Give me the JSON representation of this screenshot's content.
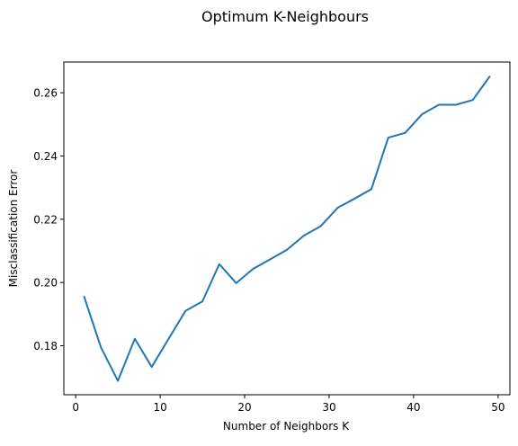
{
  "chart_data": {
    "type": "line",
    "title": "Optimum K-Neighbours",
    "xlabel": "Number of Neighbors K",
    "ylabel": "Misclassification Error",
    "xlim": [
      -1.4,
      51.4
    ],
    "ylim": [
      0.1645,
      0.2697
    ],
    "xticks": [
      0,
      10,
      20,
      30,
      40,
      50
    ],
    "yticks": [
      0.18,
      0.2,
      0.22,
      0.24,
      0.26
    ],
    "ytick_labels": [
      "0.18",
      "0.20",
      "0.22",
      "0.24",
      "0.26"
    ],
    "grid": false,
    "line_color": "#1f77b4",
    "series": [
      {
        "x": [
          1,
          3,
          5,
          7,
          9,
          11,
          13,
          15,
          17,
          19,
          21,
          23,
          25,
          27,
          29,
          31,
          33,
          35,
          37,
          39,
          41,
          43,
          45,
          47,
          49
        ],
        "y": [
          0.1955,
          0.1794,
          0.1689,
          0.1822,
          0.1733,
          0.1822,
          0.191,
          0.194,
          0.2058,
          0.1998,
          0.2043,
          0.2073,
          0.2103,
          0.2148,
          0.2178,
          0.2236,
          0.2265,
          0.2295,
          0.2458,
          0.2473,
          0.2532,
          0.2562,
          0.2562,
          0.2577,
          0.2651
        ]
      }
    ]
  }
}
